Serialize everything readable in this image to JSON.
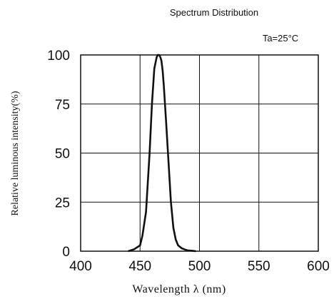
{
  "chart_data": {
    "type": "line",
    "title": "Spectrum Distribution",
    "condition": "Ta=25°C",
    "xlabel": "Wavelength  λ (nm)",
    "ylabel": "Relative luminous intensity(%)",
    "xlim": [
      400,
      600
    ],
    "ylim": [
      0,
      100
    ],
    "x_ticks": [
      "400",
      "450",
      "500",
      "550",
      "600"
    ],
    "y_ticks": [
      "0",
      "25",
      "50",
      "75",
      "100"
    ],
    "grid": true,
    "series": [
      {
        "x": [
          440,
          445,
          450,
          452,
          455,
          458,
          460,
          462,
          464,
          465,
          466,
          467,
          468,
          469,
          470,
          472,
          474,
          476,
          478,
          480,
          482,
          485,
          488,
          490,
          494,
          497
        ],
        "values": [
          0,
          1,
          3,
          8,
          20,
          50,
          75,
          93,
          99,
          100,
          100,
          99,
          97,
          92,
          84,
          65,
          45,
          25,
          12,
          6,
          3,
          1.5,
          0.8,
          0.4,
          0.2,
          0
        ]
      }
    ]
  }
}
